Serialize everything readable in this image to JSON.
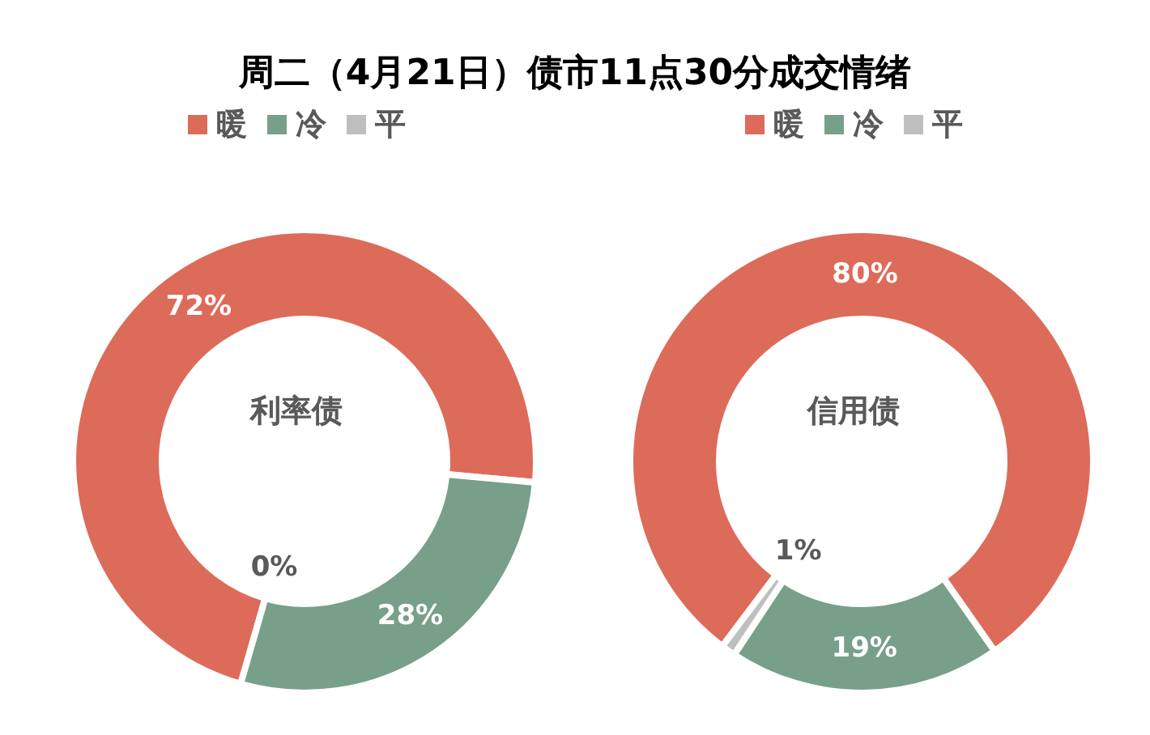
{
  "chart_data": [
    {
      "type": "donut",
      "title": "周二（4月21日）债市11点30分成交情绪",
      "categories": [
        "暖",
        "冷",
        "平"
      ],
      "values": [
        72,
        28,
        0
      ],
      "colors": [
        "#dd6b5a",
        "#789f8a",
        "#bfbfbf"
      ],
      "value_labels": [
        "72%",
        "28%",
        "0%"
      ],
      "annotations": [
        "利率债"
      ],
      "legend": "top"
    },
    {
      "type": "donut",
      "categories": [
        "暖",
        "冷",
        "平"
      ],
      "values": [
        80,
        19,
        1
      ],
      "colors": [
        "#dd6b5a",
        "#789f8a",
        "#bfbfbf"
      ],
      "value_labels": [
        "80%",
        "19%",
        "1%"
      ],
      "annotations": [
        "信用债"
      ],
      "legend": "top"
    }
  ]
}
